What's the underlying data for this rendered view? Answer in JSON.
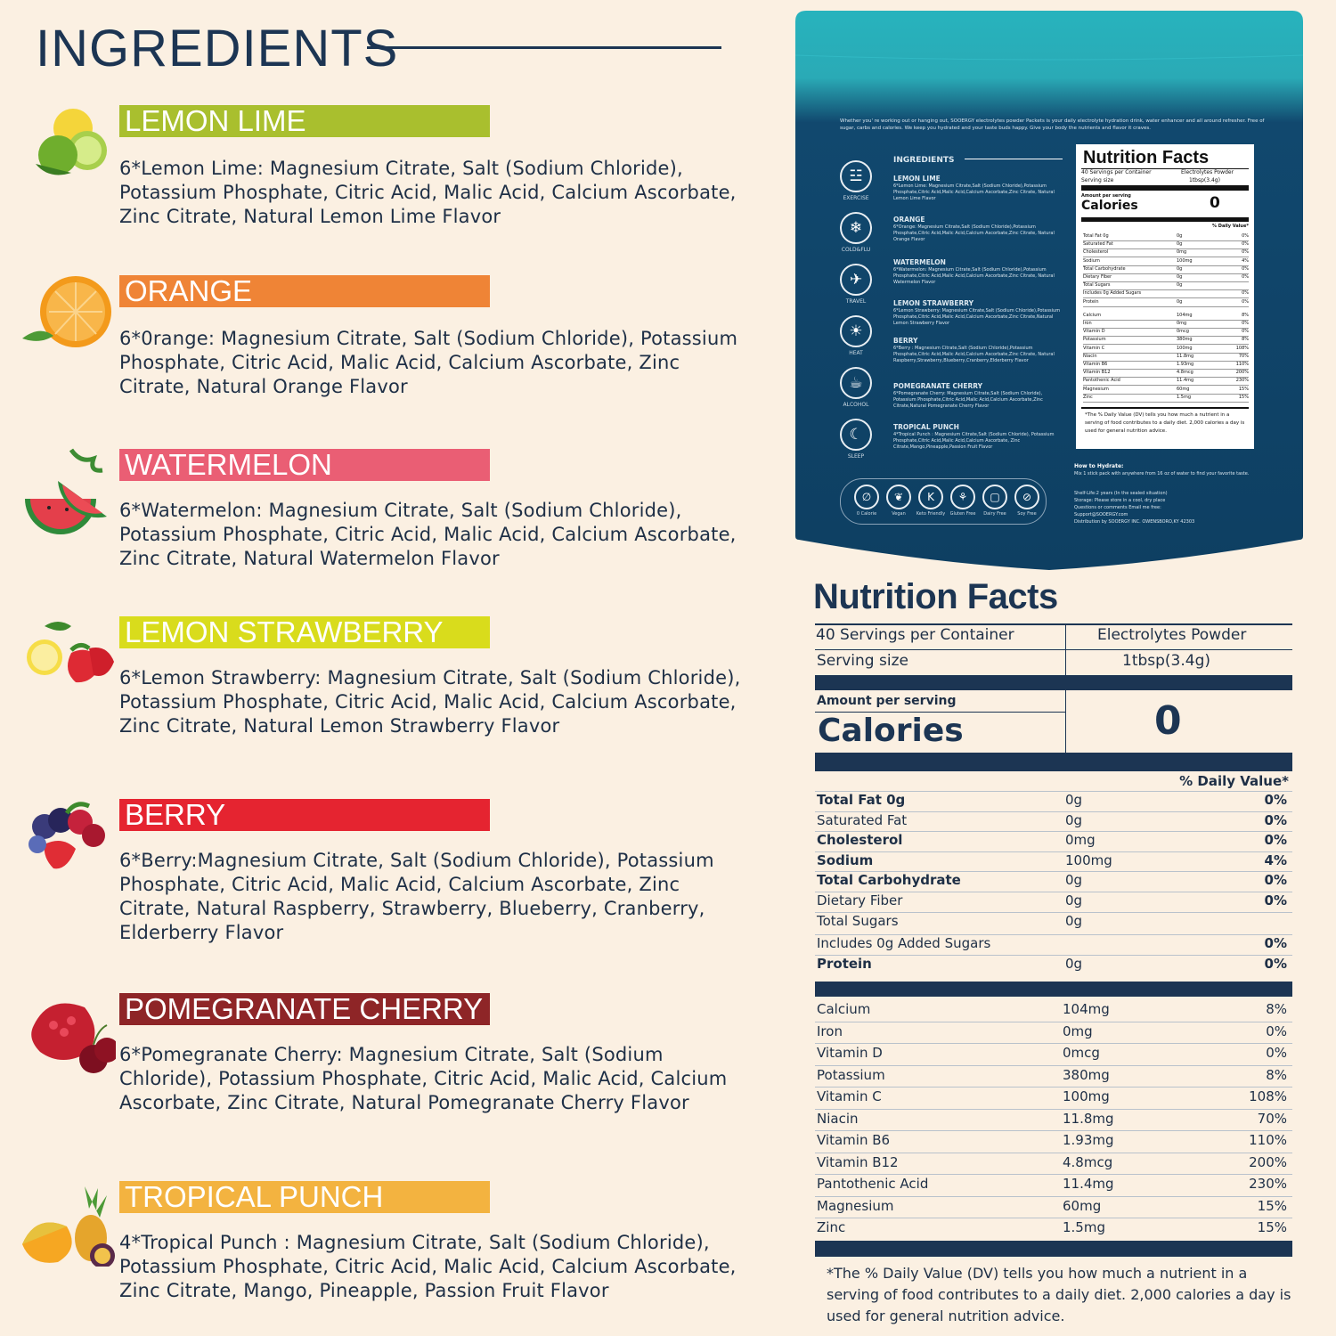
{
  "heading": "INGREDIENTS",
  "flavors": [
    {
      "name": "LEMON LIME",
      "color": "#a9bf2e",
      "text": "6*Lemon Lime: Magnesium Citrate, Salt (Sodium Chloride), Potassium Phosphate, Citric Acid, Malic Acid, Calcium Ascorbate, Zinc Citrate, Natural Lemon Lime Flavor"
    },
    {
      "name": "ORANGE",
      "color": "#ef8436",
      "text": "6*0range: Magnesium Citrate, Salt (Sodium Chloride), Potassium Phosphate, Citric Acid, Malic Acid, Calcium Ascorbate, Zinc Citrate, Natural Orange Flavor"
    },
    {
      "name": "WATERMELON",
      "color": "#ea5e74",
      "text": "6*Watermelon: Magnesium Citrate, Salt (Sodium Chloride), Potassium Phosphate, Citric Acid, Malic Acid, Calcium Ascorbate, Zinc Citrate, Natural Watermelon Flavor"
    },
    {
      "name": "LEMON STRAWBERRY",
      "color": "#d9dc1c",
      "text": "6*Lemon Strawberry: Magnesium Citrate, Salt (Sodium Chloride), Potassium Phosphate, Citric Acid, Malic Acid, Calcium Ascorbate, Zinc Citrate, Natural Lemon Strawberry Flavor"
    },
    {
      "name": "BERRY",
      "color": "#e52430",
      "text": "6*Berry:Magnesium Citrate, Salt (Sodium Chloride), Potassium Phosphate, Citric Acid, Malic Acid, Calcium Ascorbate, Zinc Citrate, Natural Raspberry, Strawberry, Blueberry, Cranberry, Elderberry Flavor"
    },
    {
      "name": "POMEGRANATE CHERRY",
      "color": "#8e2527",
      "text": "6*Pomegranate Cherry: Magnesium Citrate, Salt (Sodium Chloride), Potassium Phosphate, Citric Acid, Malic Acid, Calcium Ascorbate, Zinc Citrate, Natural Pomegranate Cherry Flavor"
    },
    {
      "name": "TROPICAL PUNCH",
      "color": "#f3b340",
      "text": "4*Tropical Punch : Magnesium Citrate, Salt (Sodium Chloride), Potassium Phosphate, Citric Acid, Malic Acid, Calcium Ascorbate, Zinc Citrate, Mango, Pineapple, Passion Fruit Flavor"
    }
  ],
  "package": {
    "tagline": "Whether you' re working out or hanging out, SOOERGY electrolytes powder Packets is your daily electrolyte hydration drink, water enhancer and all around refresher. Free of sugar, carbs and calories. We keep you hydrated and your taste buds happy. Give your body the nutrients and flavor it craves.",
    "ingredients_title": "INGREDIENTS",
    "items": [
      {
        "title": "LEMON LIME",
        "text": "6*Lemon Lime: Magnesium Citrate,Salt (Sodium Chloride),Potassium Phosphate,Citric Acid,Malic Acid,Calcium Ascorbate,Zinc Citrate, Natural Lemon Lime Flavor"
      },
      {
        "title": "ORANGE",
        "text": "6*Orange: Magnesium Citrate,Salt (Sodium Chloride),Potassium Phosphate,Citric Acid,Malic Acid,Calcium Ascorbate,Zinc Citrate, Natural Orange Flavor"
      },
      {
        "title": "WATERMELON",
        "text": "6*Watermelon: Magnesium Citrate,Salt (Sodium Chloride),Potassium Phosphate,Citric Acid,Malic Acid,Calcium Ascorbate,Zinc Citrate, Natural Watermelon Flavor"
      },
      {
        "title": "LEMON STRAWBERRY",
        "text": "6*Lemon Strawberry: Magnesium Citrate,Salt (Sodium Chloride),Potassium Phosphate,Citric Acid,Malic Acid,Calcium Ascorbate,Zinc Citrate,Natural Lemon Strawberry Flavor"
      },
      {
        "title": "BERRY",
        "text": "6*Berry : Magnesium Citrate,Salt (Sodium Chloride),Potassium Phosphate,Citric Acid,Malic Acid,Calcium Ascorbate,Zinc Citrate, Natural Raspberry,Strawberry,Blueberry,Cranberry,Elderberry Flavor"
      },
      {
        "title": "POMEGRANATE CHERRY",
        "text": "6*Pomegranate Cherry: Magnesium Citrate,Salt (Sodium Chloride), Potassium Phosphate,Citric Acid,Malic Acid,Calcium Ascorbate,Zinc Citrate,Natural Pomegranate Cherry Flavor"
      },
      {
        "title": "TROPICAL PUNCH",
        "text": "4*Tropical Punch : Magnesium Citrate,Salt (Sodium Chloride), Potassium Phosphate,Citric Acid,Malic Acid,Calcium Ascorbate, Zinc Citrate,Mango,Pineapple,Passion Fruit Flavor"
      }
    ],
    "side_icons": [
      "EXERCISE",
      "COLD&FLU",
      "TRAVEL",
      "HEAT",
      "ALCOHOL",
      "SLEEP"
    ],
    "badges": [
      "0 Calorie",
      "Vegan",
      "Keto Friendly",
      "Gluten Free",
      "Dairy Free",
      "Soy Free"
    ],
    "label": {
      "title": "Nutrition Facts",
      "servings": "40 Servings per Container",
      "product": "Electrolytes Powder",
      "serving_size_label": "Serving size",
      "serving_size": "1tbsp(3.4g)",
      "amount": "Amount per serving",
      "calories_label": "Calories",
      "calories": "0",
      "dv": "% Daily Value*",
      "footnote": "*The % Daily Value (DV) tells you how much a nutrient in a serving of food contributes to a daily diet. 2,000 calories a day is used for general nutrition advice."
    },
    "how_title": "How to Hydrate:",
    "how_text": "Mix 1 stick pack with anywhere from 16 oz of water to find your favorite taste.",
    "shelf": "Shelf-Life:2 years (In the sealed situation)",
    "storage": "Storage: Please store in a cool, dry place",
    "questions": "Questions or comments Email me free:",
    "email": "Support@SOOERGY.com",
    "distribution": "Distribution by SOOERGY INC. OWENSBORO,KY 42303"
  },
  "nutrition": {
    "title": "Nutrition Facts",
    "servings": "40 Servings per Container",
    "product": "Electrolytes Powder",
    "serving_size_label": "Serving size",
    "serving_size": "1tbsp(3.4g)",
    "amount_label": "Amount per serving",
    "calories_label": "Calories",
    "calories": "0",
    "dv_header": "% Daily Value*",
    "rows": [
      {
        "name": "Total Fat 0g",
        "amount": "0g",
        "dv": "0%",
        "bold": true
      },
      {
        "name": "Saturated Fat",
        "amount": "0g",
        "dv": "0%",
        "bold": false
      },
      {
        "name": "Cholesterol",
        "amount": "0mg",
        "dv": "0%",
        "bold": true
      },
      {
        "name": "Sodium",
        "amount": "100mg",
        "dv": "4%",
        "bold": true
      },
      {
        "name": "Total Carbohydrate",
        "amount": "0g",
        "dv": "0%",
        "bold": true
      },
      {
        "name": "Dietary Fiber",
        "amount": "0g",
        "dv": "0%",
        "bold": false
      },
      {
        "name": "Total Sugars",
        "amount": "0g",
        "dv": "",
        "bold": false
      },
      {
        "name": "Includes 0g Added Sugars",
        "amount": "",
        "dv": "0%",
        "bold": false
      },
      {
        "name": "Protein",
        "amount": "0g",
        "dv": "0%",
        "bold": true
      }
    ],
    "minerals": [
      {
        "name": "Calcium",
        "amount": "104mg",
        "dv": "8%"
      },
      {
        "name": "Iron",
        "amount": "0mg",
        "dv": "0%"
      },
      {
        "name": "Vitamin D",
        "amount": "0mcg",
        "dv": "0%"
      },
      {
        "name": "Potassium",
        "amount": "380mg",
        "dv": "8%"
      },
      {
        "name": "Vitamin C",
        "amount": "100mg",
        "dv": "108%"
      },
      {
        "name": "Niacin",
        "amount": "11.8mg",
        "dv": "70%"
      },
      {
        "name": "Vitamin B6",
        "amount": "1.93mg",
        "dv": "110%"
      },
      {
        "name": "Vitamin B12",
        "amount": "4.8mcg",
        "dv": "200%"
      },
      {
        "name": "Pantothenic Acid",
        "amount": "11.4mg",
        "dv": "230%"
      },
      {
        "name": "Magnesium",
        "amount": "60mg",
        "dv": "15%"
      },
      {
        "name": "Zinc",
        "amount": "1.5mg",
        "dv": "15%"
      }
    ],
    "footnote": "*The % Daily Value (DV) tells you how much a nutrient in a serving of food contributes to a daily diet. 2,000 calories a day is used for general nutrition advice."
  }
}
